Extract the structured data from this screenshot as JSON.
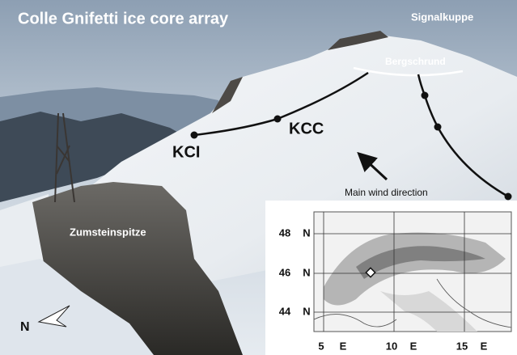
{
  "title": "Colle Gnifetti ice core array",
  "labels": {
    "signalkuppe": "Signalkuppe",
    "bergschrund": "Bergschrund",
    "kci": "KCI",
    "kcc": "KCC",
    "wind": "Main wind direction",
    "zumsteinspitze": "Zumsteinspitze",
    "north": "N"
  },
  "inset_map": {
    "lat_labels": [
      {
        "value": "48",
        "hemisphere": "N"
      },
      {
        "value": "46",
        "hemisphere": "N"
      },
      {
        "value": "44",
        "hemisphere": "N"
      }
    ],
    "lon_labels": [
      {
        "value": "5",
        "hemisphere": "E"
      },
      {
        "value": "10",
        "hemisphere": "E"
      },
      {
        "value": "15",
        "hemisphere": "E"
      }
    ]
  }
}
